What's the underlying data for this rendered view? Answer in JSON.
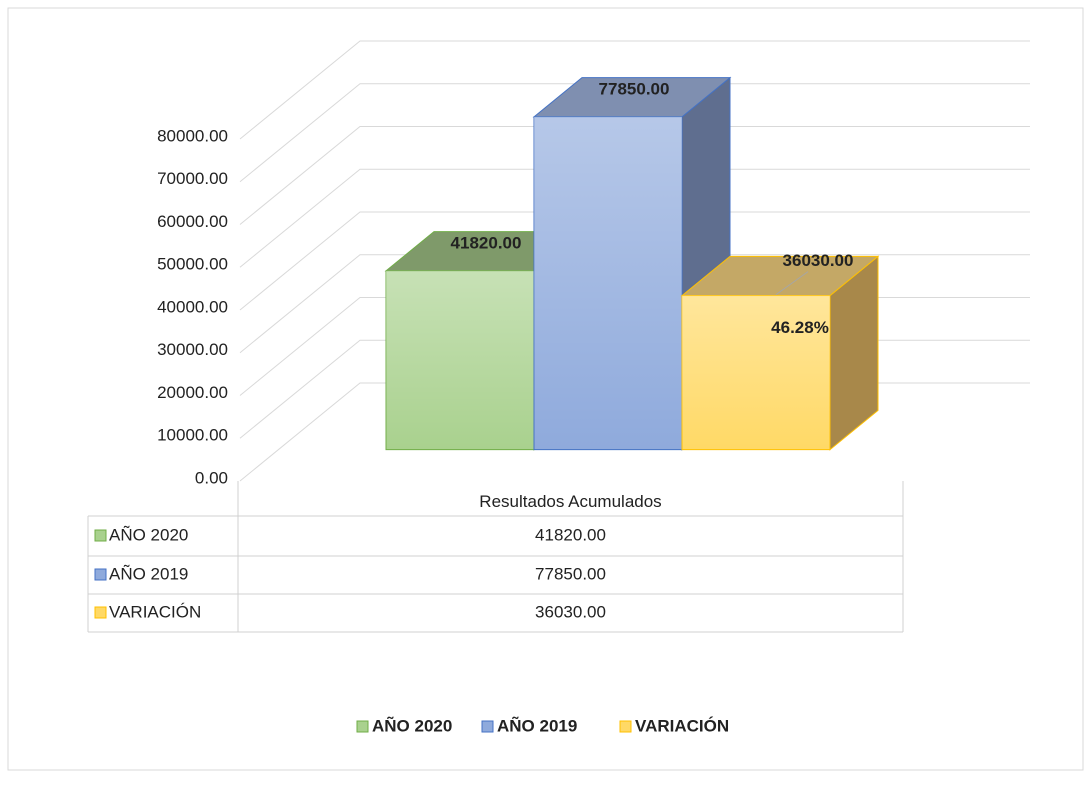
{
  "chart_data": {
    "type": "bar3d",
    "categories": [
      "Resultados Acumulados"
    ],
    "series": [
      {
        "name": "AÑO 2020",
        "color": "#a9d18e",
        "values": [
          41820
        ],
        "value_labels": [
          "41820.00"
        ]
      },
      {
        "name": "AÑO 2019",
        "color": "#8faadc",
        "values": [
          77850
        ],
        "value_labels": [
          "77850.00"
        ]
      },
      {
        "name": "VARIACIÓN",
        "color": "#ffd966",
        "values": [
          36030
        ],
        "value_labels": [
          "36030.00"
        ]
      }
    ],
    "annotation": "46.28%",
    "ylim": [
      0,
      80000
    ],
    "yticks": [
      {
        "value": 0,
        "label": "0.00"
      },
      {
        "value": 10000,
        "label": "10000.00"
      },
      {
        "value": 20000,
        "label": "20000.00"
      },
      {
        "value": 30000,
        "label": "30000.00"
      },
      {
        "value": 40000,
        "label": "40000.00"
      },
      {
        "value": 50000,
        "label": "50000.00"
      },
      {
        "value": 60000,
        "label": "60000.00"
      },
      {
        "value": 70000,
        "label": "70000.00"
      },
      {
        "value": 80000,
        "label": "80000.00"
      }
    ],
    "grid": true,
    "legend": "bottom",
    "data_table": true
  }
}
